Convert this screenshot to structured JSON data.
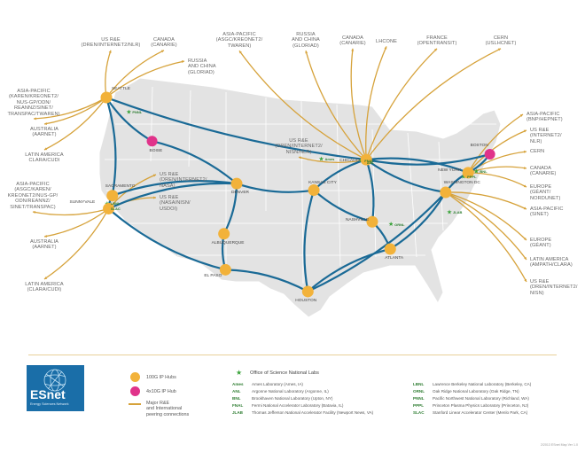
{
  "colors": {
    "map_fill": "#e4e4e4",
    "backbone": "#1a6a96",
    "peering": "#d6a23a",
    "hub_100g": "#f2b23a",
    "hub_4x10g": "#e0338a",
    "lab_star": "#3aa33a",
    "logo_bg": "#1a6ea8"
  },
  "hubs": [
    {
      "id": "seattle",
      "name": "SEATTLE",
      "type": "100G",
      "lon": -122.3,
      "lat": 47.6
    },
    {
      "id": "boise",
      "name": "BOISE",
      "type": "4x10G",
      "lon": -116.2,
      "lat": 43.6
    },
    {
      "id": "sacramento",
      "name": "SACRAMENTO",
      "type": "100G",
      "lon": -121.5,
      "lat": 38.6
    },
    {
      "id": "sunnyvale",
      "name": "SUNNYVALE",
      "type": "100G",
      "lon": -122.0,
      "lat": 37.4
    },
    {
      "id": "denver",
      "name": "DENVER",
      "type": "100G",
      "lon": -104.9,
      "lat": 39.7
    },
    {
      "id": "albuquerque",
      "name": "ALBUQUERQUE",
      "type": "100G",
      "lon": -106.6,
      "lat": 35.1
    },
    {
      "id": "elpaso",
      "name": "EL PASO",
      "type": "100G",
      "lon": -106.4,
      "lat": 31.8
    },
    {
      "id": "kansascity",
      "name": "KANSAS CITY",
      "type": "100G",
      "lon": -94.6,
      "lat": 39.1
    },
    {
      "id": "houston",
      "name": "HOUSTON",
      "type": "100G",
      "lon": -95.4,
      "lat": 29.8
    },
    {
      "id": "chicago",
      "name": "CHICAGO",
      "type": "100G",
      "lon": -87.6,
      "lat": 41.9
    },
    {
      "id": "nashville",
      "name": "NASHVILLE",
      "type": "100G",
      "lon": -86.8,
      "lat": 36.2
    },
    {
      "id": "atlanta",
      "name": "ATLANTA",
      "type": "100G",
      "lon": -84.4,
      "lat": 33.7
    },
    {
      "id": "washington",
      "name": "WASHINGTON DC",
      "type": "100G",
      "lon": -77.0,
      "lat": 38.9
    },
    {
      "id": "newyork",
      "name": "NEW YORK",
      "type": "100G",
      "lon": -74.0,
      "lat": 40.7
    },
    {
      "id": "boston",
      "name": "BOSTON",
      "type": "4x10G",
      "lon": -71.1,
      "lat": 42.4
    }
  ],
  "backbone_links": [
    [
      "seattle",
      "boise"
    ],
    [
      "seattle",
      "sacramento"
    ],
    [
      "seattle",
      "chicago"
    ],
    [
      "boise",
      "denver"
    ],
    [
      "sacramento",
      "sunnyvale"
    ],
    [
      "sacramento",
      "denver"
    ],
    [
      "sunnyvale",
      "elpaso"
    ],
    [
      "sunnyvale",
      "denver"
    ],
    [
      "denver",
      "kansascity"
    ],
    [
      "denver",
      "albuquerque"
    ],
    [
      "albuquerque",
      "elpaso"
    ],
    [
      "elpaso",
      "houston"
    ],
    [
      "kansascity",
      "houston"
    ],
    [
      "kansascity",
      "chicago"
    ],
    [
      "kansascity",
      "nashville"
    ],
    [
      "houston",
      "atlanta"
    ],
    [
      "houston",
      "washington"
    ],
    [
      "chicago",
      "nashville"
    ],
    [
      "chicago",
      "washington"
    ],
    [
      "chicago",
      "newyork"
    ],
    [
      "chicago",
      "boston"
    ],
    [
      "nashville",
      "atlanta"
    ],
    [
      "atlanta",
      "washington"
    ],
    [
      "washington",
      "newyork"
    ],
    [
      "newyork",
      "boston"
    ]
  ],
  "peerings": [
    {
      "hub": "seattle",
      "text": "US R&E\n(DREN/Internet2/NLR)",
      "align": "c"
    },
    {
      "hub": "seattle",
      "text": "CANADA\n(CANARIE)",
      "align": "c"
    },
    {
      "hub": "seattle",
      "text": "RUSSIA\nAND CHINA\n(GLORIAD)",
      "align": "l"
    },
    {
      "hub": "seattle",
      "text": "ASIA-PACIFIC\n(KAREN/KREONET2/\nNUS-GP/ODN/\nREANNZ/SINET/\nTRANSPAC/TWAREN)",
      "align": "c"
    },
    {
      "hub": "seattle",
      "text": "AUSTRALIA\n(AARnet)",
      "align": "c"
    },
    {
      "hub": "seattle",
      "text": "LATIN AMERICA\nCLARA/CUDI",
      "align": "c"
    },
    {
      "hub": "sunnyvale",
      "text": "ASIA-PACIFIC\n(ASGC/KAREN/\nKREONET2/NUS-GP/\nODN/REANNZ/\nSINET/TRANSPAC)",
      "align": "c"
    },
    {
      "hub": "sunnyvale",
      "text": "US R&E\n(DREN/Internet2/\nNASA)",
      "align": "l"
    },
    {
      "hub": "sunnyvale",
      "text": "US R&E\n(NASA/NISN/\nUSDOI)",
      "align": "l"
    },
    {
      "hub": "sunnyvale",
      "text": "AUSTRALIA\n(AARnet)",
      "align": "c"
    },
    {
      "hub": "sunnyvale",
      "text": "LATIN AMERICA\n(CLARA/CUDI)",
      "align": "c"
    },
    {
      "hub": "chicago",
      "text": "ASIA-PACIFIC\n(ASGC/Kreonet2/\nTWAREN)",
      "align": "c"
    },
    {
      "hub": "chicago",
      "text": "RUSSIA\nAND CHINA\n(GLORIAD)",
      "align": "c"
    },
    {
      "hub": "chicago",
      "text": "CANADA\n(CANARIE)",
      "align": "c"
    },
    {
      "hub": "chicago",
      "text": "LHCONE",
      "align": "c"
    },
    {
      "hub": "chicago",
      "text": "FRANCE\n(OpenTransit)",
      "align": "c"
    },
    {
      "hub": "chicago",
      "text": "CERN\n(USLHCNet)",
      "align": "c"
    },
    {
      "hub": "chicago",
      "text": "US R&E\n(DREN/Internet2/\nNISN/NLR)",
      "align": "c"
    },
    {
      "hub": "newyork",
      "text": "ASIA-PACIFIC\n(BNP/HEPNET)",
      "align": "l"
    },
    {
      "hub": "newyork",
      "text": "US R&E\n(Internet2/\nNLR)",
      "align": "l"
    },
    {
      "hub": "newyork",
      "text": "CERN",
      "align": "l"
    },
    {
      "hub": "newyork",
      "text": "CANADA\n(CANARIE)",
      "align": "l"
    },
    {
      "hub": "newyork",
      "text": "EUROPE\n(GÉANT/\nNORDUNET)",
      "align": "l"
    },
    {
      "hub": "washington",
      "text": "ASIA-PACIFIC\n(SINET)",
      "align": "l"
    },
    {
      "hub": "washington",
      "text": "EUROPE\n(GÉANT)",
      "align": "l"
    },
    {
      "hub": "washington",
      "text": "LATIN AMERICA\n(AMPATH/CLARA)",
      "align": "l"
    },
    {
      "hub": "washington",
      "text": "US R&E\n(DREN/Internet2/\nNISN)",
      "align": "l"
    }
  ],
  "labs_on_map": [
    {
      "abbr": "PNNL",
      "lon": -119.3,
      "lat": 46.3
    },
    {
      "abbr": "LBNL",
      "lon": -122.2,
      "lat": 37.9
    },
    {
      "abbr": "SLAC",
      "lon": -122.2,
      "lat": 37.4
    },
    {
      "abbr": "Ames",
      "lon": -93.6,
      "lat": 42.0
    },
    {
      "abbr": "FNAL",
      "lon": -88.3,
      "lat": 41.85
    },
    {
      "abbr": "ANL",
      "lon": -88.0,
      "lat": 41.7
    },
    {
      "abbr": "ORNL",
      "lon": -84.3,
      "lat": 36.0
    },
    {
      "abbr": "PPPL",
      "lon": -74.6,
      "lat": 40.35
    },
    {
      "abbr": "BNL",
      "lon": -72.9,
      "lat": 40.87
    },
    {
      "abbr": "JLAB",
      "lon": -76.5,
      "lat": 37.1
    }
  ],
  "logo": {
    "name": "ESnet",
    "tagline": "Energy Sciences Network"
  },
  "legend": {
    "hub_100g": "100G IP Hubs",
    "hub_4x10g": "4x10G IP Hub",
    "peering": "Major R&E\nand International\npeering connections"
  },
  "labs_legend": {
    "title": "Office of Science National Labs",
    "left": [
      {
        "abbr": "Ames",
        "name": "Ames Laboratory (Ames, IA)"
      },
      {
        "abbr": "ANL",
        "name": "Argonne National Laboratory (Argonne, IL)"
      },
      {
        "abbr": "BNL",
        "name": "Brookhaven National Laboratory (Upton, NY)"
      },
      {
        "abbr": "FNAL",
        "name": "Fermi National Accelerator Laboratory (Batavia, IL)"
      },
      {
        "abbr": "JLAB",
        "name": "Thomas Jefferson National Accelerator Facility (Newport News, VA)"
      }
    ],
    "right": [
      {
        "abbr": "LBNL",
        "name": "Lawrence Berkeley National Laboratory (Berkeley, CA)"
      },
      {
        "abbr": "ORNL",
        "name": "Oak Ridge National Laboratory (Oak Ridge, TN)"
      },
      {
        "abbr": "PNNL",
        "name": "Pacific Northwest National Laboratory (Richland, WA)"
      },
      {
        "abbr": "PPPL",
        "name": "Princeton Plasma Physics Laboratory (Princeton, NJ)"
      },
      {
        "abbr": "SLAC",
        "name": "Stanford Linear Accelerator Center (Menlo Park, CA)"
      }
    ]
  },
  "footnote": "2/2013 ESnet Map Ver 1.0"
}
